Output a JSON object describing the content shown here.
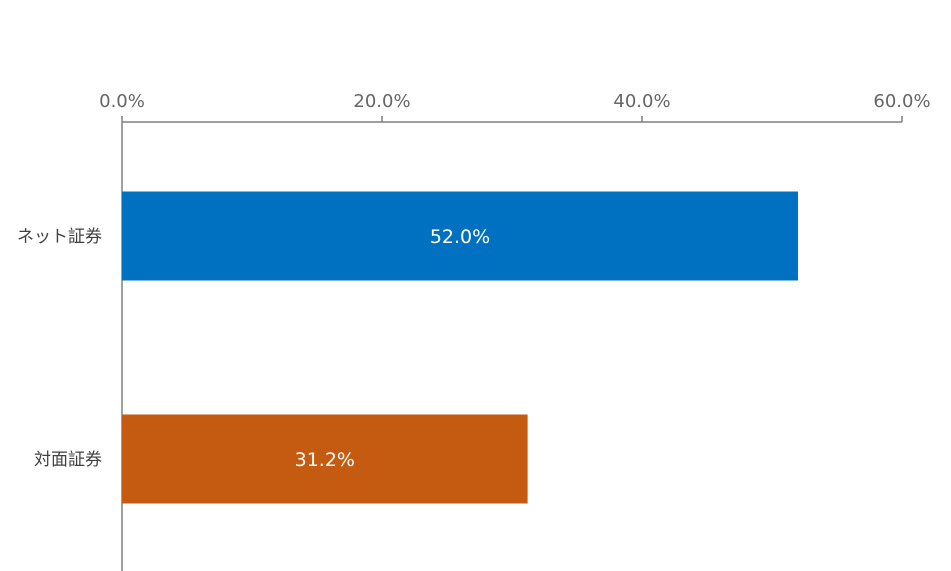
{
  "chart_data": {
    "type": "bar",
    "orientation": "horizontal",
    "title": "",
    "xlabel": "",
    "ylabel": "",
    "xlim": [
      0,
      60
    ],
    "ticks": [
      "0.0%",
      "20.0%",
      "40.0%",
      "60.0%"
    ],
    "tick_values": [
      0,
      20,
      40,
      60
    ],
    "axis_position": "top",
    "grid": false,
    "categories": [
      "ネット証券",
      "対面証券"
    ],
    "values": [
      52.0,
      31.2
    ],
    "data_labels": [
      "52.0%",
      "31.2%"
    ],
    "colors": [
      "#0070C0",
      "#C55A11"
    ],
    "axis_color": "#808080"
  }
}
